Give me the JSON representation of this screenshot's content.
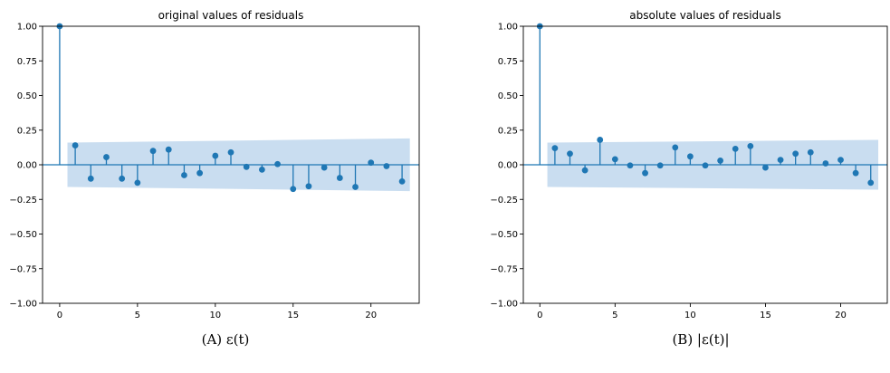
{
  "chart_data": [
    {
      "type": "stem",
      "title": "original values of residuals",
      "caption": "(A) ε(t)",
      "xlabel": "",
      "ylabel": "",
      "xlim": [
        -1.1,
        23.1
      ],
      "ylim": [
        -1.0,
        1.0
      ],
      "xticks": [
        0,
        5,
        10,
        15,
        20
      ],
      "yticks": [
        -1.0,
        -0.75,
        -0.5,
        -0.25,
        0.0,
        0.25,
        0.5,
        0.75,
        1.0
      ],
      "ytick_labels": [
        "−1.00",
        "−0.75",
        "−0.50",
        "−0.25",
        "0.00",
        "0.25",
        "0.50",
        "0.75",
        "1.00"
      ],
      "x": [
        0,
        1,
        2,
        3,
        4,
        5,
        6,
        7,
        8,
        9,
        10,
        11,
        12,
        13,
        14,
        15,
        16,
        17,
        18,
        19,
        20,
        21,
        22
      ],
      "values": [
        1.0,
        0.14,
        -0.1,
        0.055,
        -0.1,
        -0.13,
        0.1,
        0.11,
        -0.075,
        -0.06,
        0.065,
        0.09,
        -0.015,
        -0.035,
        0.005,
        -0.175,
        -0.155,
        -0.02,
        -0.095,
        -0.16,
        0.015,
        -0.01,
        -0.12
      ],
      "confidence_band": {
        "x": [
          0.5,
          22.5
        ],
        "upper": [
          0.16,
          0.19
        ],
        "lower": [
          -0.16,
          -0.19
        ]
      },
      "colors": {
        "stem": "#1f77b4",
        "band": "#c6dbef"
      }
    },
    {
      "type": "stem",
      "title": "absolute values of residuals",
      "caption": "(B) |ε(t)|",
      "xlabel": "",
      "ylabel": "",
      "xlim": [
        -1.1,
        23.1
      ],
      "ylim": [
        -1.0,
        1.0
      ],
      "xticks": [
        0,
        5,
        10,
        15,
        20
      ],
      "yticks": [
        -1.0,
        -0.75,
        -0.5,
        -0.25,
        0.0,
        0.25,
        0.5,
        0.75,
        1.0
      ],
      "ytick_labels": [
        "−1.00",
        "−0.75",
        "−0.50",
        "−0.25",
        "0.00",
        "0.25",
        "0.50",
        "0.75",
        "1.00"
      ],
      "x": [
        0,
        1,
        2,
        3,
        4,
        5,
        6,
        7,
        8,
        9,
        10,
        11,
        12,
        13,
        14,
        15,
        16,
        17,
        18,
        19,
        20,
        21,
        22
      ],
      "values": [
        1.0,
        0.12,
        0.08,
        -0.04,
        0.18,
        0.04,
        -0.005,
        -0.06,
        -0.005,
        0.125,
        0.06,
        -0.005,
        0.03,
        0.115,
        0.135,
        -0.02,
        0.035,
        0.08,
        0.09,
        0.01,
        0.035,
        -0.06,
        -0.13
      ],
      "confidence_band": {
        "x": [
          0.5,
          22.5
        ],
        "upper": [
          0.16,
          0.18
        ],
        "lower": [
          -0.16,
          -0.18
        ]
      },
      "colors": {
        "stem": "#1f77b4",
        "band": "#c6dbef"
      }
    }
  ]
}
